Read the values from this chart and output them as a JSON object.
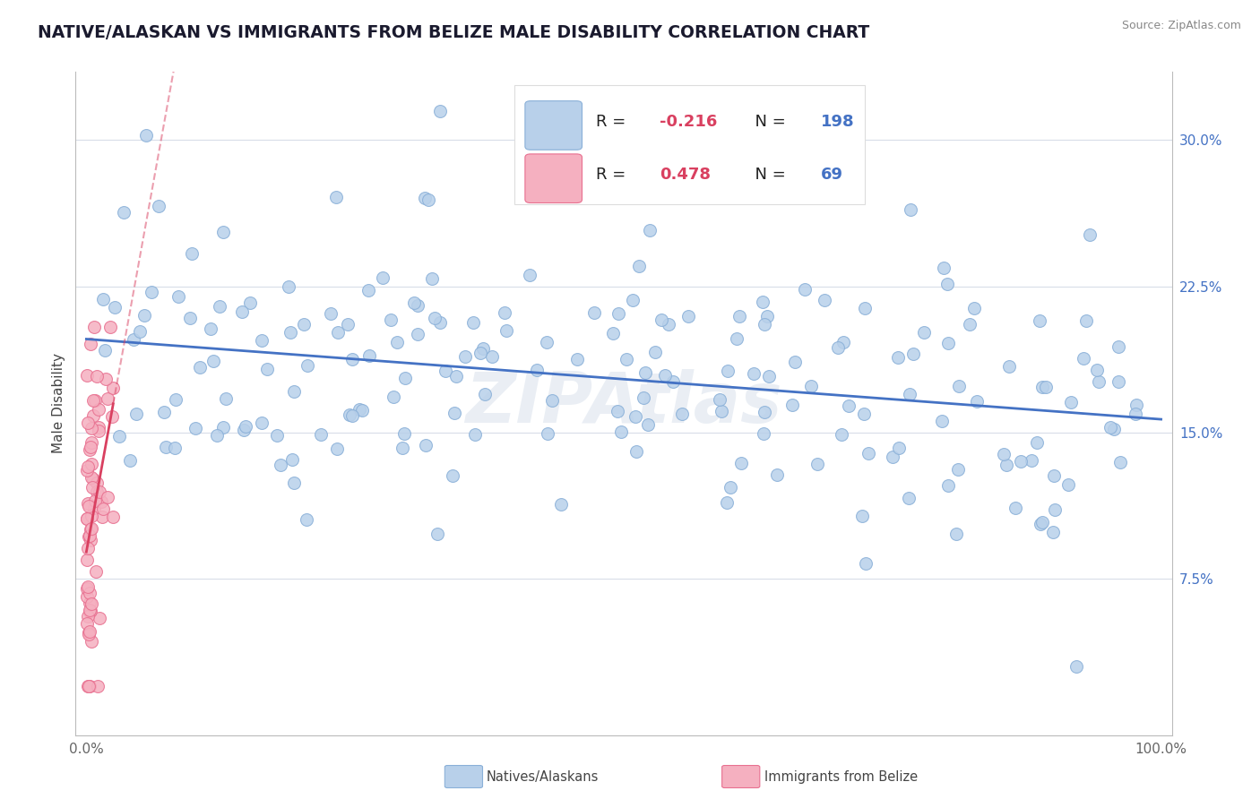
{
  "title": "NATIVE/ALASKAN VS IMMIGRANTS FROM BELIZE MALE DISABILITY CORRELATION CHART",
  "source": "Source: ZipAtlas.com",
  "ylabel": "Male Disability",
  "xlim": [
    -0.01,
    1.01
  ],
  "ylim": [
    -0.005,
    0.335
  ],
  "xtick_positions": [
    0.0,
    1.0
  ],
  "xticklabels": [
    "0.0%",
    "100.0%"
  ],
  "ytick_positions": [
    0.075,
    0.15,
    0.225,
    0.3
  ],
  "yticklabels": [
    "7.5%",
    "15.0%",
    "22.5%",
    "30.0%"
  ],
  "blue_R": "-0.216",
  "blue_N": "198",
  "pink_R": "0.478",
  "pink_N": "69",
  "blue_color": "#b8d0ea",
  "blue_edge": "#8ab0d8",
  "pink_color": "#f5b0c0",
  "pink_edge": "#e87090",
  "blue_line_color": "#4472c4",
  "pink_line_color": "#d94060",
  "r_color": "#d94060",
  "n_color": "#4472c4",
  "legend_blue_label": "Natives/Alaskans",
  "legend_pink_label": "Immigrants from Belize",
  "dot_size": 100,
  "blue_scatter_seed": 42,
  "pink_scatter_seed": 77,
  "grid_color": "#d8dde8",
  "watermark_text": "ZIPAtlas",
  "watermark_color": "#c8d4e4",
  "title_color": "#1a1a2e",
  "source_color": "#888888",
  "ylabel_color": "#444444",
  "tick_color_y": "#4472c4",
  "tick_color_x": "#666666"
}
